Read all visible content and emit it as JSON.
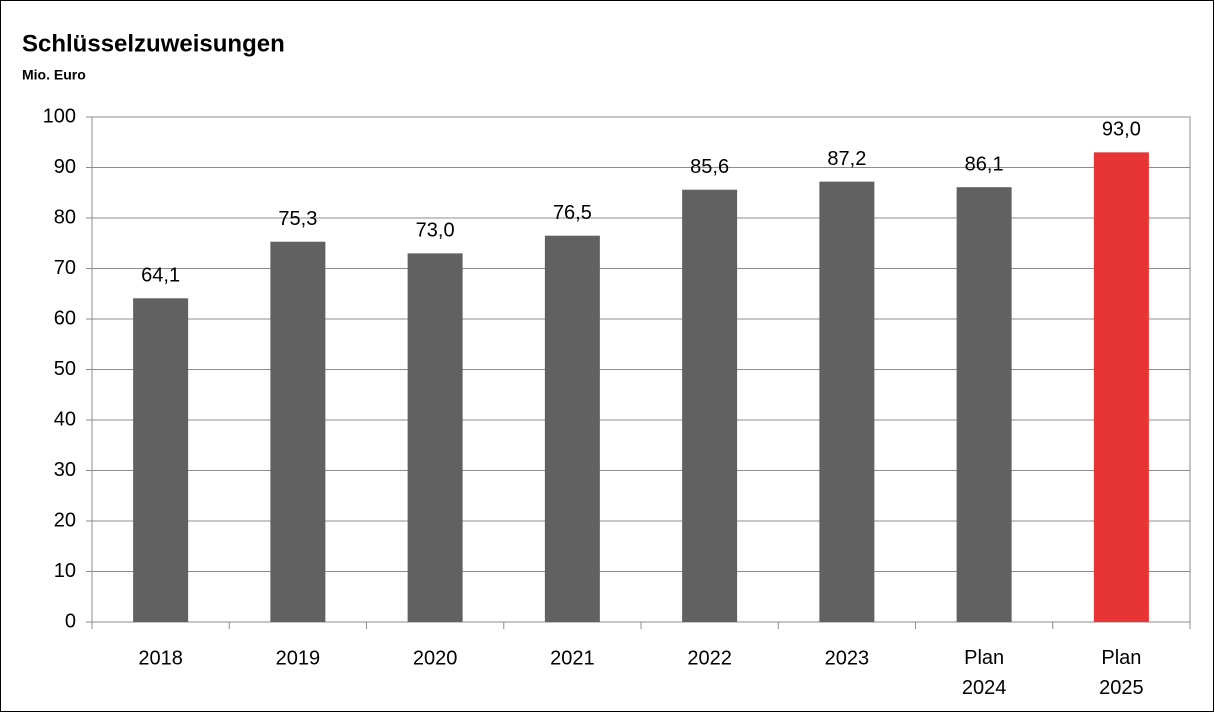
{
  "chart_data": {
    "type": "bar",
    "title": "Schlüsselzuweisungen",
    "subtitle": "Mio. Euro",
    "categories": [
      "2018",
      "2019",
      "2020",
      "2021",
      "2022",
      "2023",
      "Plan 2024",
      "Plan 2025"
    ],
    "values": [
      64.1,
      75.3,
      73.0,
      76.5,
      85.6,
      87.2,
      86.1,
      93.0
    ],
    "value_labels": [
      "64,1",
      "75,3",
      "73,0",
      "76,5",
      "85,6",
      "87,2",
      "86,1",
      "93,0"
    ],
    "colors": [
      "#616161",
      "#616161",
      "#616161",
      "#616161",
      "#616161",
      "#616161",
      "#616161",
      "#e73434"
    ],
    "ylim": [
      0,
      100
    ],
    "yticks": [
      0,
      10,
      20,
      30,
      40,
      50,
      60,
      70,
      80,
      90,
      100
    ],
    "grid": true
  }
}
